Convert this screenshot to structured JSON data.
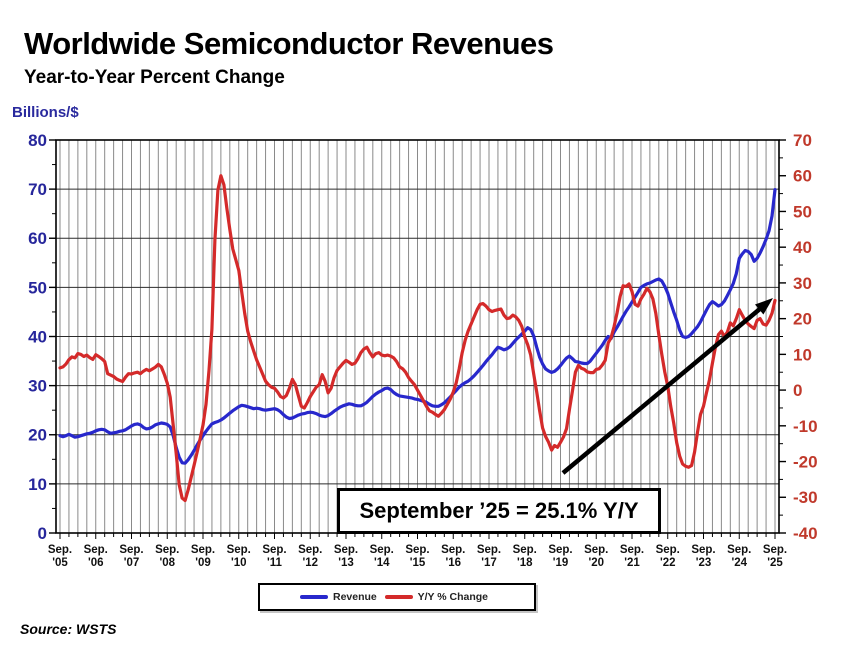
{
  "header": {
    "title": "Worldwide Semiconductor Revenues",
    "subtitle": "Year-to-Year Percent Change"
  },
  "axes": {
    "left_title": "Billions/$",
    "left_ticks": [
      "80",
      "70",
      "60",
      "50",
      "40",
      "30",
      "20",
      "10",
      "0"
    ],
    "right_ticks": [
      "70",
      "60",
      "50",
      "40",
      "30",
      "20",
      "10",
      "0",
      "-10",
      "-20",
      "-30",
      "-40"
    ],
    "x_month_label": "Sep.",
    "x_years": [
      "'05",
      "'06",
      "'07",
      "'08",
      "'09",
      "'10",
      "'11",
      "'12",
      "'13",
      "'14",
      "'15",
      "'16",
      "'17",
      "'18",
      "'19",
      "'20",
      "'21",
      "'22",
      "'23",
      "'24",
      "'25"
    ]
  },
  "legend": {
    "revenue": "Revenue",
    "yoy": "Y/Y % Change"
  },
  "annotation": {
    "text": "September ’25 = 25.1% Y/Y"
  },
  "source": "Source: WSTS",
  "colors": {
    "revenue": "#2828cc",
    "yoy": "#d42a2a",
    "left_axis_text": "#26269b",
    "right_axis_text": "#c0392b",
    "x_axis_text": "#111111",
    "grid_vertical": "#8a8a8a",
    "grid_horizontal": "#2b2b2b",
    "frame": "#000000",
    "arrow": "#000000"
  },
  "chart_data": {
    "type": "line",
    "frequency": "monthly",
    "x_start": "Sep 2005",
    "x_end": "Sep 2025",
    "points": 241,
    "left_ylim": [
      0,
      80
    ],
    "right_ylim": [
      -40,
      70
    ],
    "grid": "quarterly vertical, every 10 horizontal",
    "legend_position": "bottom-center",
    "x_tick_labels": [
      "Sep. '05",
      "Sep. '06",
      "Sep. '07",
      "Sep. '08",
      "Sep. '09",
      "Sep. '10",
      "Sep. '11",
      "Sep. '12",
      "Sep. '13",
      "Sep. '14",
      "Sep. '15",
      "Sep. '16",
      "Sep. '17",
      "Sep. '18",
      "Sep. '19",
      "Sep. '20",
      "Sep. '21",
      "Sep. '22",
      "Sep. '23",
      "Sep. '24",
      "Sep. '25"
    ],
    "callout": {
      "label": "September '25 = 25.1% Y/Y",
      "month": "Sep 2025",
      "value_pct": 25.1
    },
    "series": [
      {
        "name": "Revenue",
        "axis": "left",
        "unit": "billions of dollars (3-month average)",
        "values": [
          19.8,
          19.6,
          19.8,
          20.1,
          19.8,
          19.5,
          19.6,
          19.8,
          20.0,
          20.2,
          20.3,
          20.5,
          20.8,
          21.0,
          21.1,
          21.0,
          20.6,
          20.3,
          20.4,
          20.5,
          20.7,
          20.8,
          21.0,
          21.4,
          21.8,
          22.1,
          22.2,
          22.0,
          21.5,
          21.2,
          21.3,
          21.6,
          22.0,
          22.2,
          22.4,
          22.3,
          22.1,
          21.6,
          19.8,
          17.4,
          15.4,
          14.3,
          14.2,
          14.9,
          15.8,
          16.8,
          17.9,
          18.9,
          19.8,
          20.7,
          21.5,
          22.2,
          22.5,
          22.7,
          23.0,
          23.4,
          23.9,
          24.4,
          24.9,
          25.3,
          25.7,
          26.0,
          25.9,
          25.7,
          25.5,
          25.3,
          25.4,
          25.3,
          25.1,
          25.0,
          25.1,
          25.2,
          25.3,
          25.1,
          24.7,
          24.1,
          23.6,
          23.3,
          23.4,
          23.7,
          24.0,
          24.2,
          24.3,
          24.5,
          24.6,
          24.5,
          24.3,
          24.0,
          23.8,
          23.7,
          23.9,
          24.3,
          24.8,
          25.2,
          25.6,
          25.9,
          26.1,
          26.3,
          26.2,
          26.0,
          25.9,
          25.9,
          26.2,
          26.6,
          27.2,
          27.8,
          28.3,
          28.7,
          29.0,
          29.4,
          29.5,
          29.2,
          28.6,
          28.2,
          27.9,
          27.8,
          27.7,
          27.6,
          27.5,
          27.3,
          27.2,
          27.0,
          26.8,
          26.6,
          26.2,
          25.9,
          25.8,
          25.8,
          26.1,
          26.5,
          27.1,
          27.7,
          28.4,
          29.0,
          29.7,
          30.2,
          30.6,
          30.9,
          31.4,
          32.0,
          32.7,
          33.4,
          34.1,
          34.9,
          35.6,
          36.3,
          37.1,
          37.8,
          37.6,
          37.3,
          37.5,
          37.9,
          38.6,
          39.3,
          39.9,
          40.5,
          41.1,
          41.8,
          41.4,
          40.1,
          37.8,
          35.8,
          34.4,
          33.4,
          33.0,
          32.7,
          32.9,
          33.4,
          34.1,
          34.9,
          35.6,
          36.0,
          35.5,
          34.9,
          34.8,
          34.6,
          34.5,
          34.5,
          35.0,
          35.8,
          36.6,
          37.4,
          38.2,
          39.2,
          40.0,
          39.6,
          40.9,
          41.9,
          43.0,
          44.1,
          45.1,
          46.0,
          47.0,
          48.0,
          49.0,
          50.0,
          50.4,
          50.7,
          50.9,
          51.2,
          51.5,
          51.7,
          51.3,
          50.2,
          48.8,
          46.9,
          45.0,
          43.3,
          41.3,
          40.0,
          39.8,
          40.0,
          40.6,
          41.3,
          42.0,
          43.0,
          44.2,
          45.4,
          46.5,
          47.1,
          46.7,
          46.2,
          46.5,
          47.2,
          48.3,
          49.5,
          50.8,
          52.8,
          55.9,
          56.8,
          57.5,
          57.3,
          56.7,
          55.3,
          55.9,
          57.0,
          58.3,
          59.8,
          61.5,
          64.5,
          69.9
        ]
      },
      {
        "name": "Y/Y % Change",
        "axis": "right",
        "unit": "percent",
        "values": [
          6.2,
          6.5,
          7.3,
          8.5,
          9.3,
          9.0,
          10.2,
          10.0,
          9.4,
          9.8,
          9.1,
          8.6,
          9.9,
          9.4,
          8.8,
          8.0,
          4.6,
          4.2,
          3.8,
          3.1,
          2.7,
          2.4,
          3.6,
          4.6,
          4.5,
          4.8,
          5.0,
          4.6,
          5.3,
          5.8,
          5.4,
          5.9,
          6.4,
          7.2,
          6.5,
          4.4,
          1.9,
          -2.0,
          -9.8,
          -17.8,
          -26.5,
          -30.2,
          -30.9,
          -28.0,
          -24.5,
          -21.0,
          -17.5,
          -13.8,
          -9.8,
          -4.0,
          5.5,
          17.0,
          42.0,
          56.0,
          60.0,
          57.5,
          51.0,
          45.0,
          39.5,
          36.5,
          33.5,
          27.5,
          21.5,
          16.5,
          13.5,
          11.0,
          8.5,
          6.5,
          4.5,
          2.5,
          1.5,
          0.8,
          0.5,
          -0.5,
          -1.8,
          -2.2,
          -1.5,
          0.5,
          3.0,
          1.5,
          -1.5,
          -4.5,
          -5.0,
          -3.5,
          -1.8,
          -0.5,
          0.8,
          1.5,
          4.3,
          2.5,
          -0.8,
          0.5,
          3.5,
          5.5,
          6.5,
          7.5,
          8.3,
          7.8,
          7.2,
          7.5,
          8.8,
          10.5,
          11.5,
          12.0,
          10.5,
          9.3,
          10.2,
          10.5,
          9.8,
          9.6,
          9.8,
          9.5,
          9.0,
          8.0,
          6.5,
          6.0,
          5.0,
          3.5,
          2.5,
          1.5,
          0.0,
          -1.5,
          -3.0,
          -4.5,
          -5.8,
          -6.2,
          -6.8,
          -7.3,
          -6.5,
          -5.5,
          -4.0,
          -2.5,
          -0.5,
          2.0,
          6.0,
          10.5,
          14.0,
          16.5,
          18.5,
          20.5,
          22.5,
          24.0,
          24.2,
          23.5,
          22.5,
          22.0,
          22.3,
          22.5,
          22.7,
          21.0,
          20.0,
          20.2,
          21.0,
          20.5,
          19.5,
          17.8,
          14.8,
          12.7,
          9.8,
          4.5,
          -0.5,
          -5.7,
          -10.6,
          -13.0,
          -14.6,
          -16.8,
          -15.5,
          -16.0,
          -14.6,
          -13.1,
          -10.8,
          -5.5,
          -0.3,
          5.0,
          6.9,
          6.1,
          5.8,
          5.1,
          4.9,
          4.9,
          5.8,
          6.0,
          7.0,
          8.3,
          13.2,
          14.7,
          17.8,
          21.7,
          26.2,
          29.2,
          29.0,
          29.7,
          27.6,
          24.0,
          23.5,
          25.5,
          26.8,
          28.5,
          27.5,
          25.5,
          21.5,
          15.5,
          10.0,
          5.0,
          1.0,
          -4.5,
          -9.2,
          -14.7,
          -18.5,
          -20.7,
          -21.3,
          -21.6,
          -21.1,
          -17.3,
          -11.8,
          -6.8,
          -4.5,
          -0.7,
          2.9,
          7.5,
          12.0,
          15.5,
          16.5,
          15.0,
          16.2,
          18.8,
          18.0,
          20.0,
          22.5,
          21.0,
          19.5,
          18.5,
          17.8,
          17.2,
          19.5,
          20.0,
          18.5,
          18.2,
          19.5,
          21.5,
          25.1
        ]
      }
    ]
  }
}
